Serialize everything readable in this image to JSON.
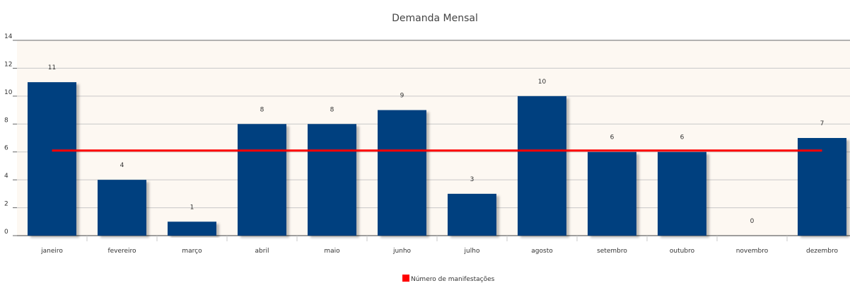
{
  "chart_data": {
    "type": "bar",
    "title": "Demanda Mensal",
    "xlabel": "",
    "ylabel": "",
    "categories": [
      "janeiro",
      "fevereiro",
      "março",
      "abril",
      "maio",
      "junho",
      "julho",
      "agosto",
      "setembro",
      "outubro",
      "novembro",
      "dezembro"
    ],
    "values": [
      11,
      4,
      1,
      8,
      8,
      9,
      3,
      10,
      6,
      6,
      0,
      7
    ],
    "average_line": 6.1,
    "ylim": [
      0,
      14
    ],
    "yticks": [
      0,
      2,
      4,
      6,
      8,
      10,
      12,
      14
    ],
    "grid": true,
    "legend": {
      "position": "bottom",
      "entries": [
        {
          "label": "Número de manifestações",
          "color": "#ff0000"
        }
      ]
    }
  },
  "colors": {
    "bar": "#003f7f",
    "average_line": "#ff0000",
    "plot_background": "#fdf8f2",
    "grid": "#c8c8c8",
    "axis": "#666666",
    "text": "#333333"
  }
}
